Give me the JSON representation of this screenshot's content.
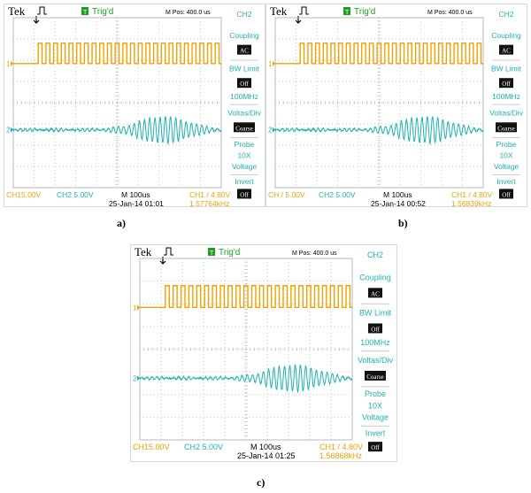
{
  "colors": {
    "ch1": "#f0a000",
    "ch2": "#20b2b2",
    "trig": "#1aa31a",
    "grid": "#b9b9b9",
    "menu": "#20b2b2"
  },
  "scopes": [
    {
      "id": "a",
      "caption": "a)",
      "brand": "Tek",
      "trig_label": "Trig'd",
      "trig_badge": "T",
      "m_pos": "M Pos: 400.0 us",
      "menu": {
        "title": "CH2",
        "coupling_label": "Coupling",
        "coupling_value": "AC",
        "bw_label": "BW Limit",
        "bw_value": "Off",
        "bw_freq": "100MHz",
        "vdiv_label": "Voltas/Div",
        "vdiv_value": "Coarse",
        "probe_label": "Probe",
        "probe_x": "10X",
        "probe_kind": "Voltage",
        "invert_label": "Invert",
        "invert_value": "Off"
      },
      "bottom": {
        "ch1_scale": "CH15.00V",
        "ch2_scale": "CH2 5.00V",
        "timebase": "M 100us",
        "datetime": "25-Jan-14 01:01",
        "trigger": "CH1 / 4.80V",
        "freq": "1.57764kHz"
      }
    },
    {
      "id": "b",
      "caption": "b)",
      "brand": "Tek",
      "trig_label": "Trig'd",
      "trig_badge": "T",
      "m_pos": "M Pos: 400.0 us",
      "menu": {
        "title": "CH2",
        "coupling_label": "Coupling",
        "coupling_value": "AC",
        "bw_label": "BW Limit",
        "bw_value": "Off",
        "bw_freq": "100MHz",
        "vdiv_label": "Voltas/Div",
        "vdiv_value": "Coarse",
        "probe_label": "Probe",
        "probe_x": "10X",
        "probe_kind": "Voltage",
        "invert_label": "Invert",
        "invert_value": "Off"
      },
      "bottom": {
        "ch1_scale": "CH / 5.00V",
        "ch2_scale": "CH2 5.00V",
        "timebase": "M 100us",
        "datetime": "25-Jan-14 00:52",
        "trigger": "CH1 / 4.80V",
        "freq": "1.56839kHz"
      }
    },
    {
      "id": "c",
      "caption": "c)",
      "brand": "Tek",
      "trig_label": "Trig'd",
      "trig_badge": "T",
      "m_pos": "M Pos: 400.0 us",
      "menu": {
        "title": "CH2",
        "coupling_label": "Coupling",
        "coupling_value": "AC",
        "bw_label": "BW Limit",
        "bw_value": "Off",
        "bw_freq": "100MHz",
        "vdiv_label": "Voltas/Div",
        "vdiv_value": "Coarse",
        "probe_label": "Probe",
        "probe_x": "10X",
        "probe_kind": "Voltage",
        "invert_label": "Invert",
        "invert_value": "Off"
      },
      "bottom": {
        "ch1_scale": "CH15.00V",
        "ch2_scale": "CH2 5.00V",
        "timebase": "M 100us",
        "datetime": "25-Jan-14 01:25",
        "trigger": "CH1 / 4.80V",
        "freq": "1.56868kHz"
      }
    }
  ]
}
